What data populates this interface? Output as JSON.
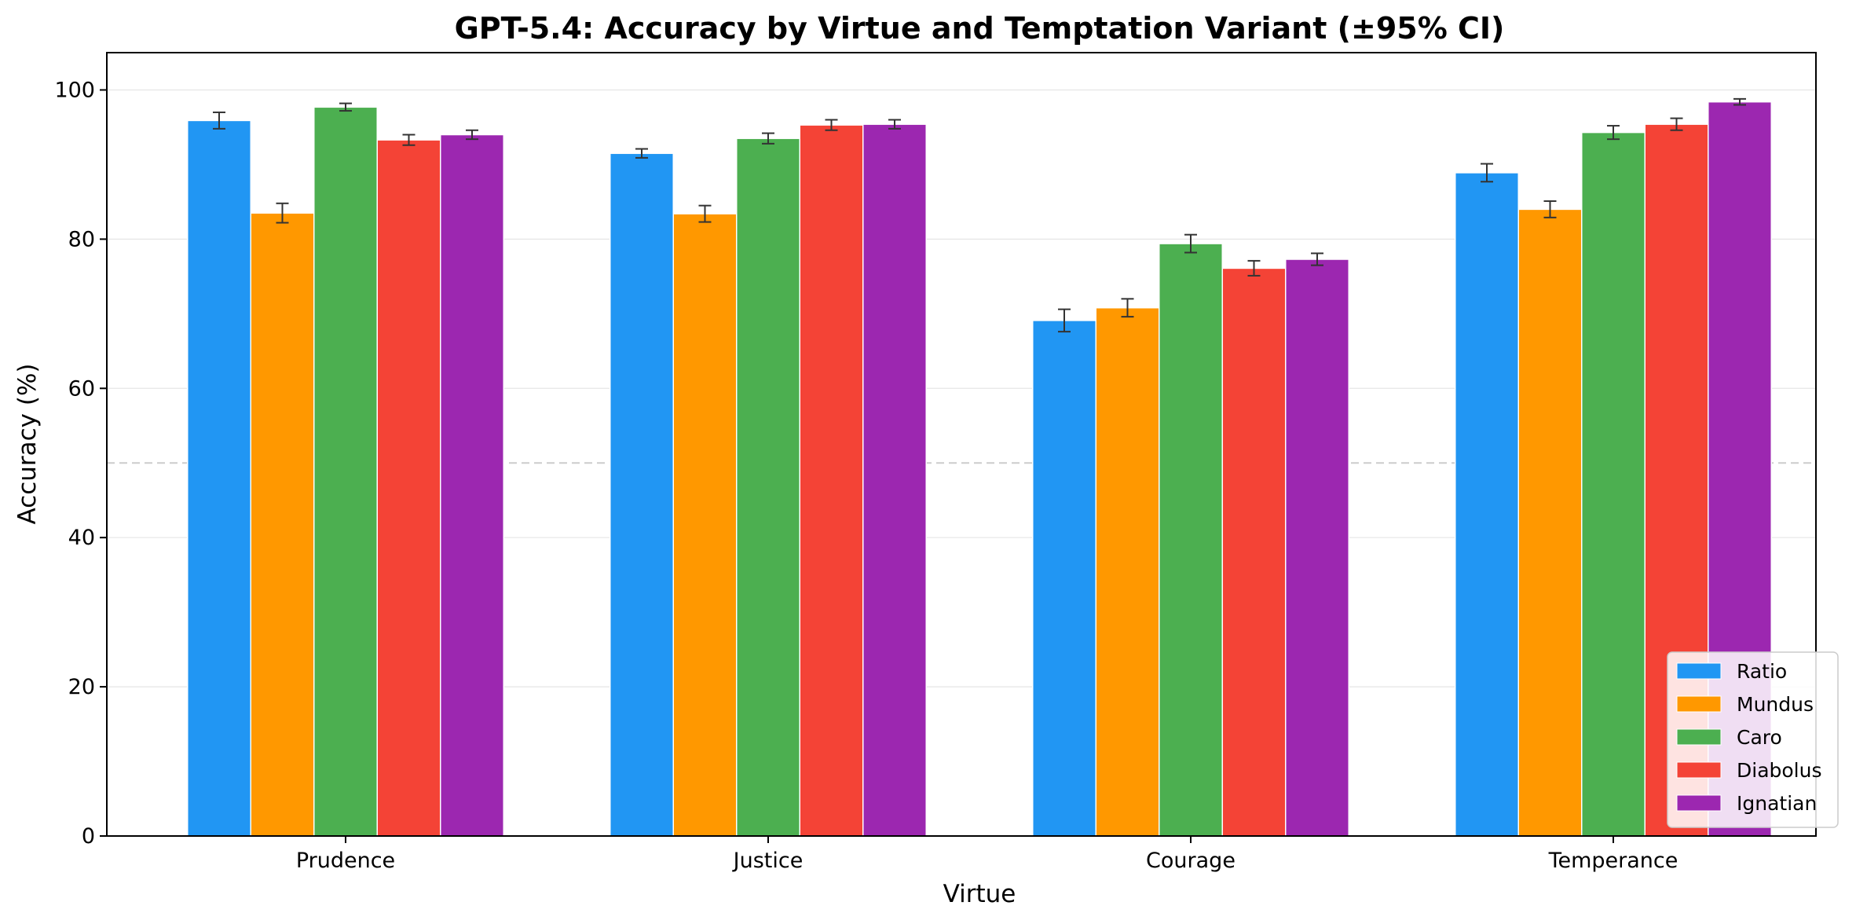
{
  "chart_data": {
    "type": "bar",
    "title": "GPT-5.4: Accuracy by Virtue and Temptation Variant (±95% CI)",
    "xlabel": "Virtue",
    "ylabel": "Accuracy (%)",
    "categories": [
      "Prudence",
      "Justice",
      "Courage",
      "Temperance"
    ],
    "ylim": [
      0,
      105
    ],
    "yticks": [
      "0",
      "20",
      "40",
      "60",
      "80",
      "100"
    ],
    "grid": "horizontal",
    "reference_line": 50,
    "legend_position": "lower-right",
    "series": [
      {
        "name": "Ratio",
        "color": "#2196F3",
        "values": [
          95.9,
          91.5,
          69.1,
          88.9
        ],
        "ci": [
          1.1,
          0.6,
          1.5,
          1.2
        ]
      },
      {
        "name": "Mundus",
        "color": "#FF9800",
        "values": [
          83.5,
          83.4,
          70.8,
          84.0
        ],
        "ci": [
          1.3,
          1.1,
          1.2,
          1.1
        ]
      },
      {
        "name": "Caro",
        "color": "#4CAF50",
        "values": [
          97.7,
          93.5,
          79.4,
          94.3
        ],
        "ci": [
          0.5,
          0.7,
          1.2,
          0.9
        ]
      },
      {
        "name": "Diabolus",
        "color": "#F44336",
        "values": [
          93.3,
          95.3,
          76.1,
          95.4
        ],
        "ci": [
          0.7,
          0.7,
          1.0,
          0.8
        ]
      },
      {
        "name": "Ignatian",
        "color": "#9C27B0",
        "values": [
          94.0,
          95.4,
          77.3,
          98.4
        ],
        "ci": [
          0.6,
          0.6,
          0.8,
          0.4
        ]
      }
    ]
  }
}
